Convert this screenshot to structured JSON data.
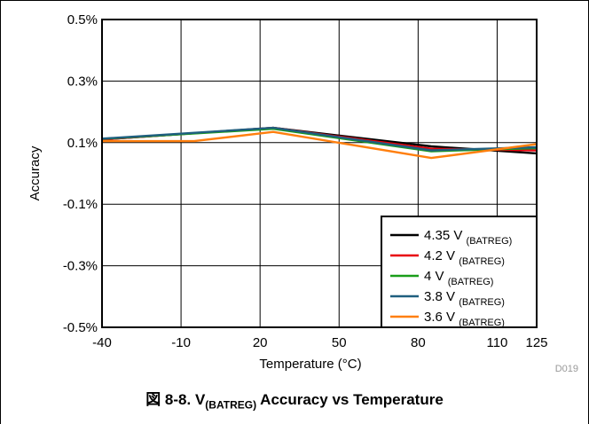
{
  "chart_data": {
    "type": "line",
    "xlabel": "Temperature (°C)",
    "ylabel": "Accuracy",
    "xlim": [
      -40,
      125
    ],
    "ylim": [
      -0.5,
      0.5
    ],
    "x_ticks": [
      -40,
      -10,
      20,
      50,
      80,
      110,
      125
    ],
    "x_tick_labels": [
      "-40",
      "-10",
      "20",
      "50",
      "80",
      "110",
      "125"
    ],
    "y_ticks": [
      0.5,
      0.3,
      0.1,
      -0.1,
      -0.3,
      -0.5
    ],
    "y_tick_labels": [
      "0.5%",
      "0.3%",
      "0.1%",
      "-0.1%",
      "-0.3%",
      "-0.5%"
    ],
    "grid": true,
    "legend_position": "bottom-right",
    "series": [
      {
        "name": "4.35 V",
        "name_sub": "(BATREG)",
        "color": "#000000",
        "x": [
          -40,
          25,
          85,
          125
        ],
        "y": [
          0.11,
          0.148,
          0.088,
          0.065
        ]
      },
      {
        "name": "4.2 V",
        "name_sub": "(BATREG)",
        "color": "#e8000b",
        "x": [
          -40,
          25,
          85,
          125
        ],
        "y": [
          0.11,
          0.148,
          0.08,
          0.075
        ]
      },
      {
        "name": "4 V",
        "name_sub": "(BATREG)",
        "color": "#1a9e1a",
        "x": [
          -40,
          25,
          85,
          125
        ],
        "y": [
          0.112,
          0.145,
          0.072,
          0.082
        ]
      },
      {
        "name": "3.8 V",
        "name_sub": "(BATREG)",
        "color": "#1f5f7f",
        "x": [
          -40,
          25,
          85,
          125
        ],
        "y": [
          0.113,
          0.148,
          0.075,
          0.085
        ]
      },
      {
        "name": "3.6 V",
        "name_sub": "(BATREG)",
        "color": "#ff7f0e",
        "x": [
          -40,
          -5,
          25,
          85,
          125
        ],
        "y": [
          0.105,
          0.105,
          0.135,
          0.05,
          0.095
        ]
      }
    ]
  },
  "caption": {
    "prefix": "図 8-8. V",
    "sub": "(BATREG)",
    "suffix": " Accuracy vs Temperature"
  },
  "figure_id": "D019"
}
